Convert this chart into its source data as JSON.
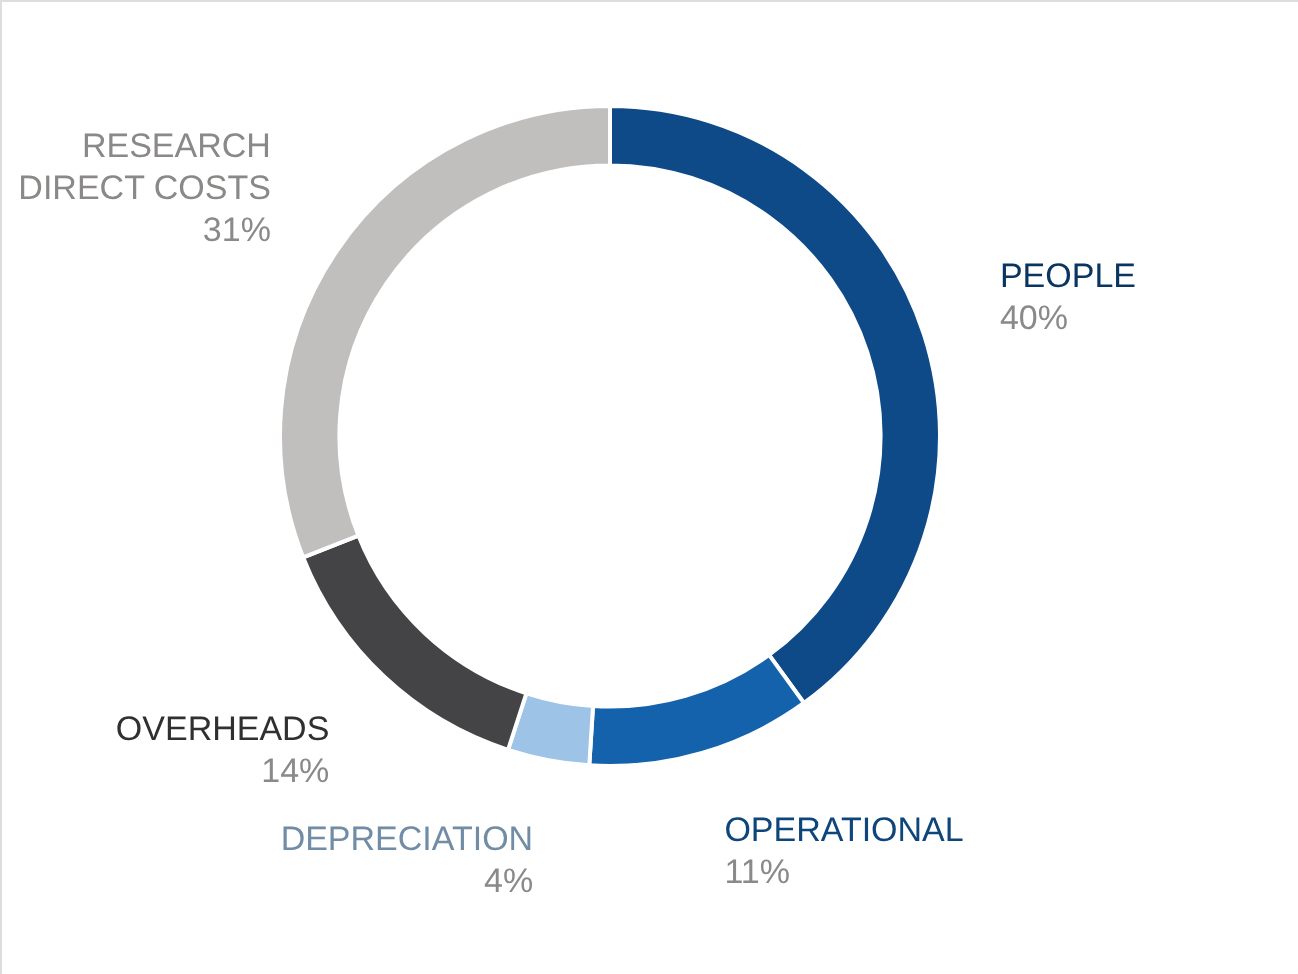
{
  "chart_data": {
    "type": "donut",
    "categories": [
      "PEOPLE",
      "OPERATIONAL",
      "DEPRECIATION",
      "OVERHEADS",
      "RESEARCH DIRECT COSTS"
    ],
    "values": [
      40,
      11,
      4,
      14,
      31
    ],
    "colors": [
      "#0d4a87",
      "#1462ab",
      "#9dc3e6",
      "#444446",
      "#c0bfbe"
    ],
    "value_labels": [
      "40%",
      "11%",
      "4%",
      "14%",
      "31%"
    ]
  }
}
